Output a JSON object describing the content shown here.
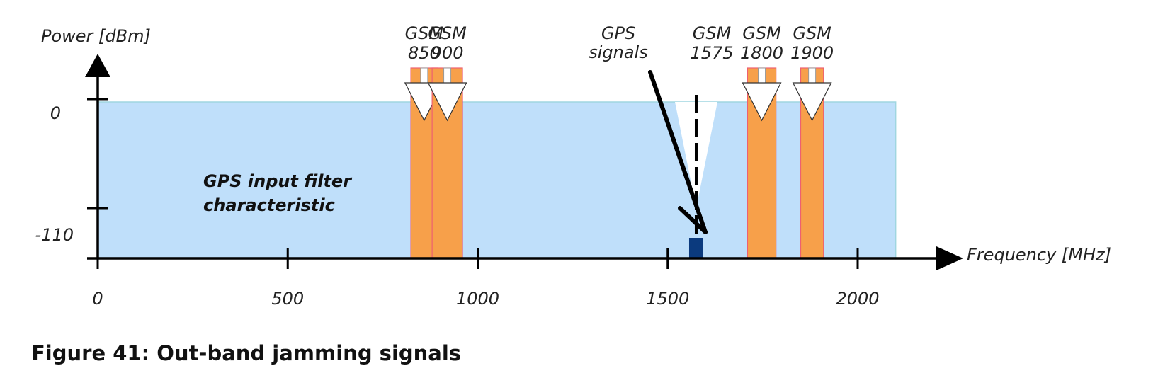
{
  "caption": "Figure 41: Out-band jamming signals",
  "axes": {
    "y_label": "Power [dBm]",
    "x_label": "Frequency [MHz]",
    "y_ticks": [
      {
        "value": 0,
        "label": "0"
      },
      {
        "value": -110,
        "label": "-110"
      }
    ],
    "x_ticks": [
      {
        "value": 0,
        "label": "0"
      },
      {
        "value": 500,
        "label": "500"
      },
      {
        "value": 1000,
        "label": "1000"
      },
      {
        "value": 1500,
        "label": "1500"
      },
      {
        "value": 2000,
        "label": "2000"
      }
    ],
    "x_range": [
      0,
      2100
    ]
  },
  "filter": {
    "label_line1": "GPS input filter",
    "label_line2": "characteristic",
    "x_end": 2100,
    "notch_center": 1575
  },
  "jammers": [
    {
      "line1": "GSM",
      "line2": "850",
      "start": 824,
      "end": 894
    },
    {
      "line1": "GSM",
      "line2": "900",
      "start": 880,
      "end": 960
    },
    {
      "line1": "GSM",
      "line2": "1800",
      "start": 1710,
      "end": 1785
    },
    {
      "line1": "GSM",
      "line2": "1900",
      "start": 1850,
      "end": 1910
    }
  ],
  "gps_carrier": {
    "line1": "GSM",
    "line2": "1575",
    "value": 1575
  },
  "gps_signals": {
    "line1": "GPS",
    "line2": "signals"
  },
  "colors": {
    "filter": "#bfdffa",
    "filter_edge": "#9fd6e0",
    "jammer": "#f7a04a",
    "jammer_edge": "#ee6070",
    "gps_signal": "#0b3a7e",
    "axis": "#000000"
  }
}
